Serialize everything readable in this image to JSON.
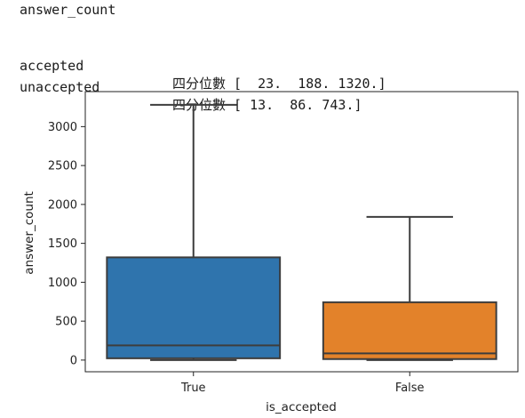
{
  "output": {
    "heading": "answer_count",
    "rows": [
      {
        "label": "accepted",
        "quartiles_text": "四分位數 [  23.  188. 1320.]"
      },
      {
        "label": "unaccepted",
        "quartiles_text": "四分位數 [ 13.  86. 743.]"
      }
    ]
  },
  "chart_data": {
    "type": "box",
    "xlabel": "is_accepted",
    "ylabel": "answer_count",
    "categories": [
      "True",
      "False"
    ],
    "ylim": [
      -150,
      3450
    ],
    "yticks": [
      0,
      500,
      1000,
      1500,
      2000,
      2500,
      3000
    ],
    "grid": false,
    "boxes": [
      {
        "category": "True",
        "min": 0,
        "q1": 23,
        "median": 188,
        "q3": 1320,
        "max": 3280,
        "color": "#2f74ad"
      },
      {
        "category": "False",
        "min": 0,
        "q1": 13,
        "median": 86,
        "q3": 743,
        "max": 1840,
        "color": "#e3822a"
      }
    ]
  }
}
